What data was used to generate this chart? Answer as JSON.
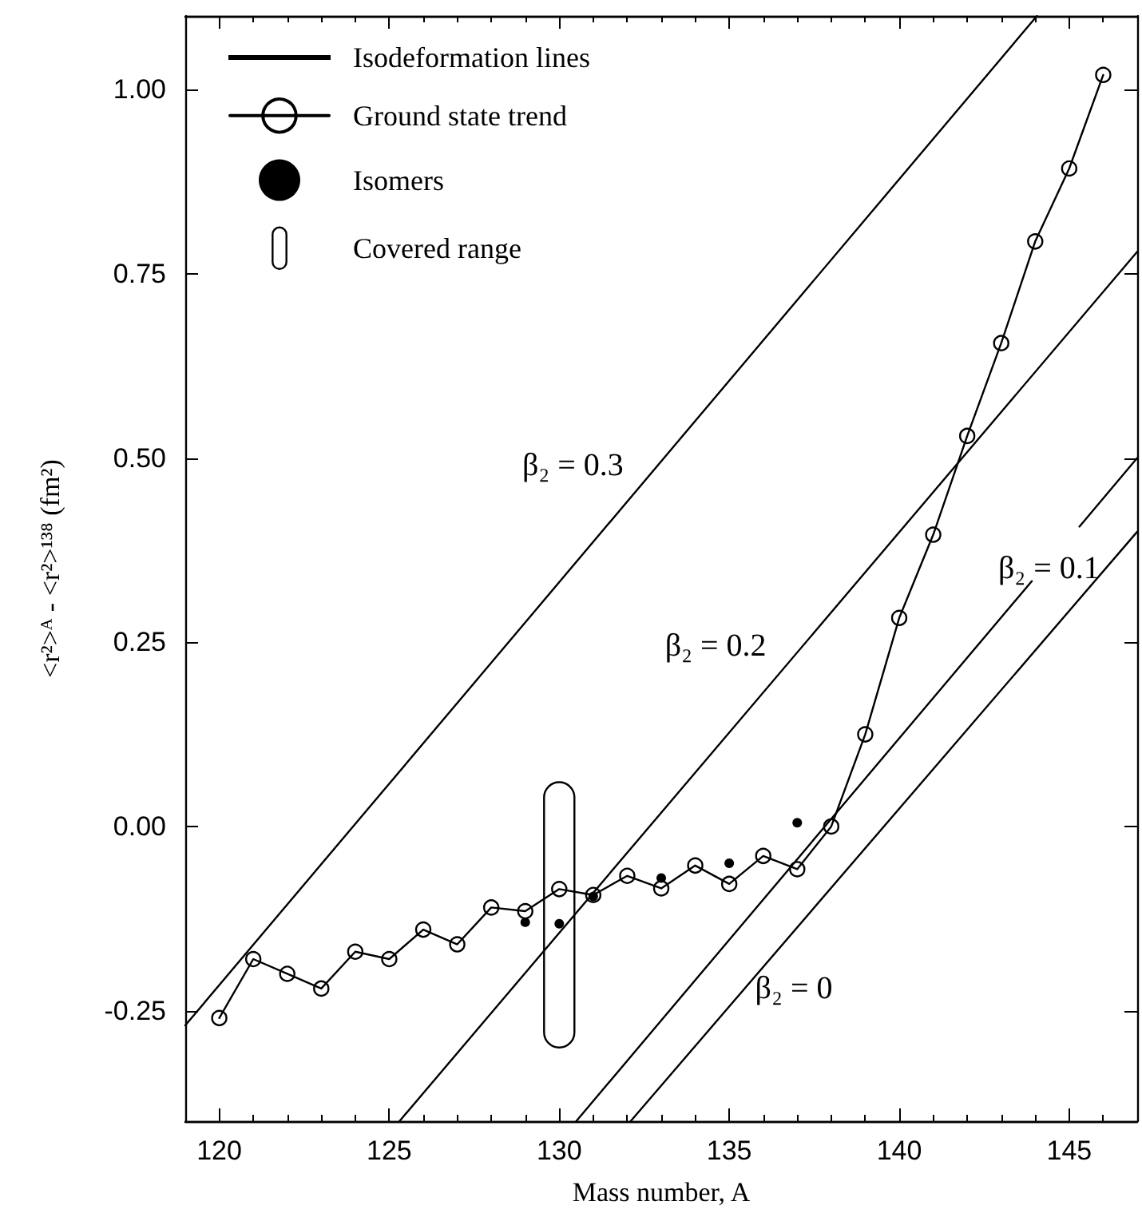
{
  "chart_data": {
    "type": "line",
    "xlabel": "Mass number, A",
    "ylabel": "<r²>ᴬ - <r²>¹³⁸ (fm²)",
    "xlim": [
      119,
      147
    ],
    "ylim": [
      -0.4,
      1.1
    ],
    "xticks": [
      {
        "value": 120,
        "label": "120"
      },
      {
        "value": 121,
        "label": null
      },
      {
        "value": 122,
        "label": null
      },
      {
        "value": 123,
        "label": null
      },
      {
        "value": 124,
        "label": null
      },
      {
        "value": 125,
        "label": "125"
      },
      {
        "value": 126,
        "label": null
      },
      {
        "value": 127,
        "label": null
      },
      {
        "value": 128,
        "label": null
      },
      {
        "value": 129,
        "label": null
      },
      {
        "value": 130,
        "label": "130"
      },
      {
        "value": 131,
        "label": null
      },
      {
        "value": 132,
        "label": null
      },
      {
        "value": 133,
        "label": null
      },
      {
        "value": 134,
        "label": null
      },
      {
        "value": 135,
        "label": "135"
      },
      {
        "value": 136,
        "label": null
      },
      {
        "value": 137,
        "label": null
      },
      {
        "value": 138,
        "label": null
      },
      {
        "value": 139,
        "label": null
      },
      {
        "value": 140,
        "label": "140"
      },
      {
        "value": 141,
        "label": null
      },
      {
        "value": 142,
        "label": null
      },
      {
        "value": 143,
        "label": null
      },
      {
        "value": 144,
        "label": null
      },
      {
        "value": 145,
        "label": "145"
      },
      {
        "value": 146,
        "label": null
      }
    ],
    "yticks": [
      {
        "value": -0.25,
        "label": "-0.25"
      },
      {
        "value": 0,
        "label": "0.00"
      },
      {
        "value": 0.25,
        "label": "0.25"
      },
      {
        "value": 0.5,
        "label": "0.50"
      },
      {
        "value": 0.75,
        "label": "0.75"
      },
      {
        "value": 1,
        "label": "1.00"
      }
    ],
    "grid": false,
    "legend": "top left",
    "series": [
      {
        "name": "Isodeformation lines",
        "marker": "none",
        "color": "#000000",
        "x": [
          119,
          144.05
        ],
        "values": [
          -0.27,
          1.1
        ]
      },
      {
        "marker": "none",
        "color": "#000000",
        "x": [
          125.3,
          147
        ],
        "values": [
          -0.4,
          0.78
        ]
      },
      {
        "marker": "none",
        "color": "#000000",
        "x": [
          130.5,
          143.9,
          144.6,
          145.3,
          147
        ],
        "values": [
          -0.4,
          0.333,
          null,
          0.407,
          0.5
        ]
      },
      {
        "marker": "none",
        "color": "#000000",
        "x": [
          132.1,
          147
        ],
        "values": [
          -0.4,
          0.4
        ]
      },
      {
        "name": "Ground state trend",
        "marker": "circle",
        "color": "#000000",
        "x": [
          120,
          121,
          122,
          123,
          124,
          125,
          126,
          127,
          128,
          129,
          130,
          131,
          132,
          133,
          134,
          135,
          136,
          137,
          138,
          139,
          140,
          141,
          142,
          143,
          144,
          145,
          146
        ],
        "values": [
          -0.26,
          -0.18,
          -0.2,
          -0.22,
          -0.17,
          -0.18,
          -0.14,
          -0.16,
          -0.11,
          -0.115,
          -0.085,
          -0.093,
          -0.067,
          -0.084,
          -0.053,
          -0.078,
          -0.04,
          -0.058,
          0,
          0.125,
          0.283,
          0.396,
          0.53,
          0.656,
          0.794,
          0.893,
          1.02
        ]
      },
      {
        "name": "Isomers",
        "type": "scatter",
        "marker": "circle",
        "color": "#000000",
        "x": [
          129,
          130,
          131,
          133,
          135,
          137
        ],
        "values": [
          -0.13,
          -0.132,
          -0.095,
          -0.07,
          -0.05,
          0.005
        ]
      },
      {
        "name": "Covered range",
        "type": "bar",
        "color": "#000000",
        "x": [
          130
        ],
        "base": [
          -0.3
        ],
        "values": [
          0.36
        ]
      }
    ],
    "annotations": [
      "β₂ = 0.3",
      "β₂ = 0.2",
      "β₂ = 0.1",
      "β₂ = 0"
    ]
  }
}
